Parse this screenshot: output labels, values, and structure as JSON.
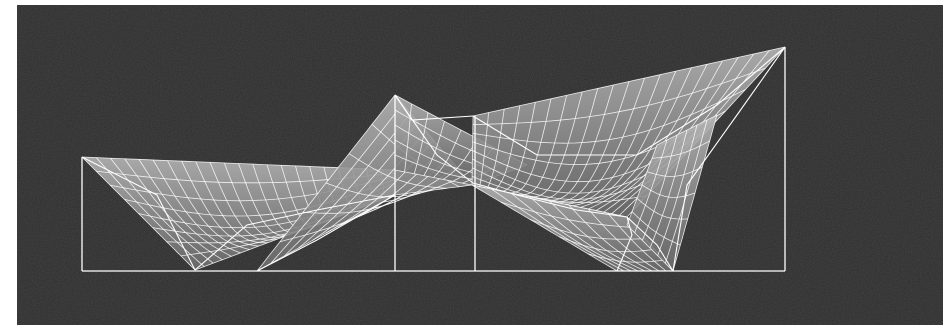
{
  "scene": {
    "background_color": "#2c2c2c",
    "line_color": "#ffffff",
    "surface_color": "#9a9a9a",
    "description_elements": [
      "ground-line",
      "support-masts",
      "tensile-membrane-mesh"
    ]
  }
}
